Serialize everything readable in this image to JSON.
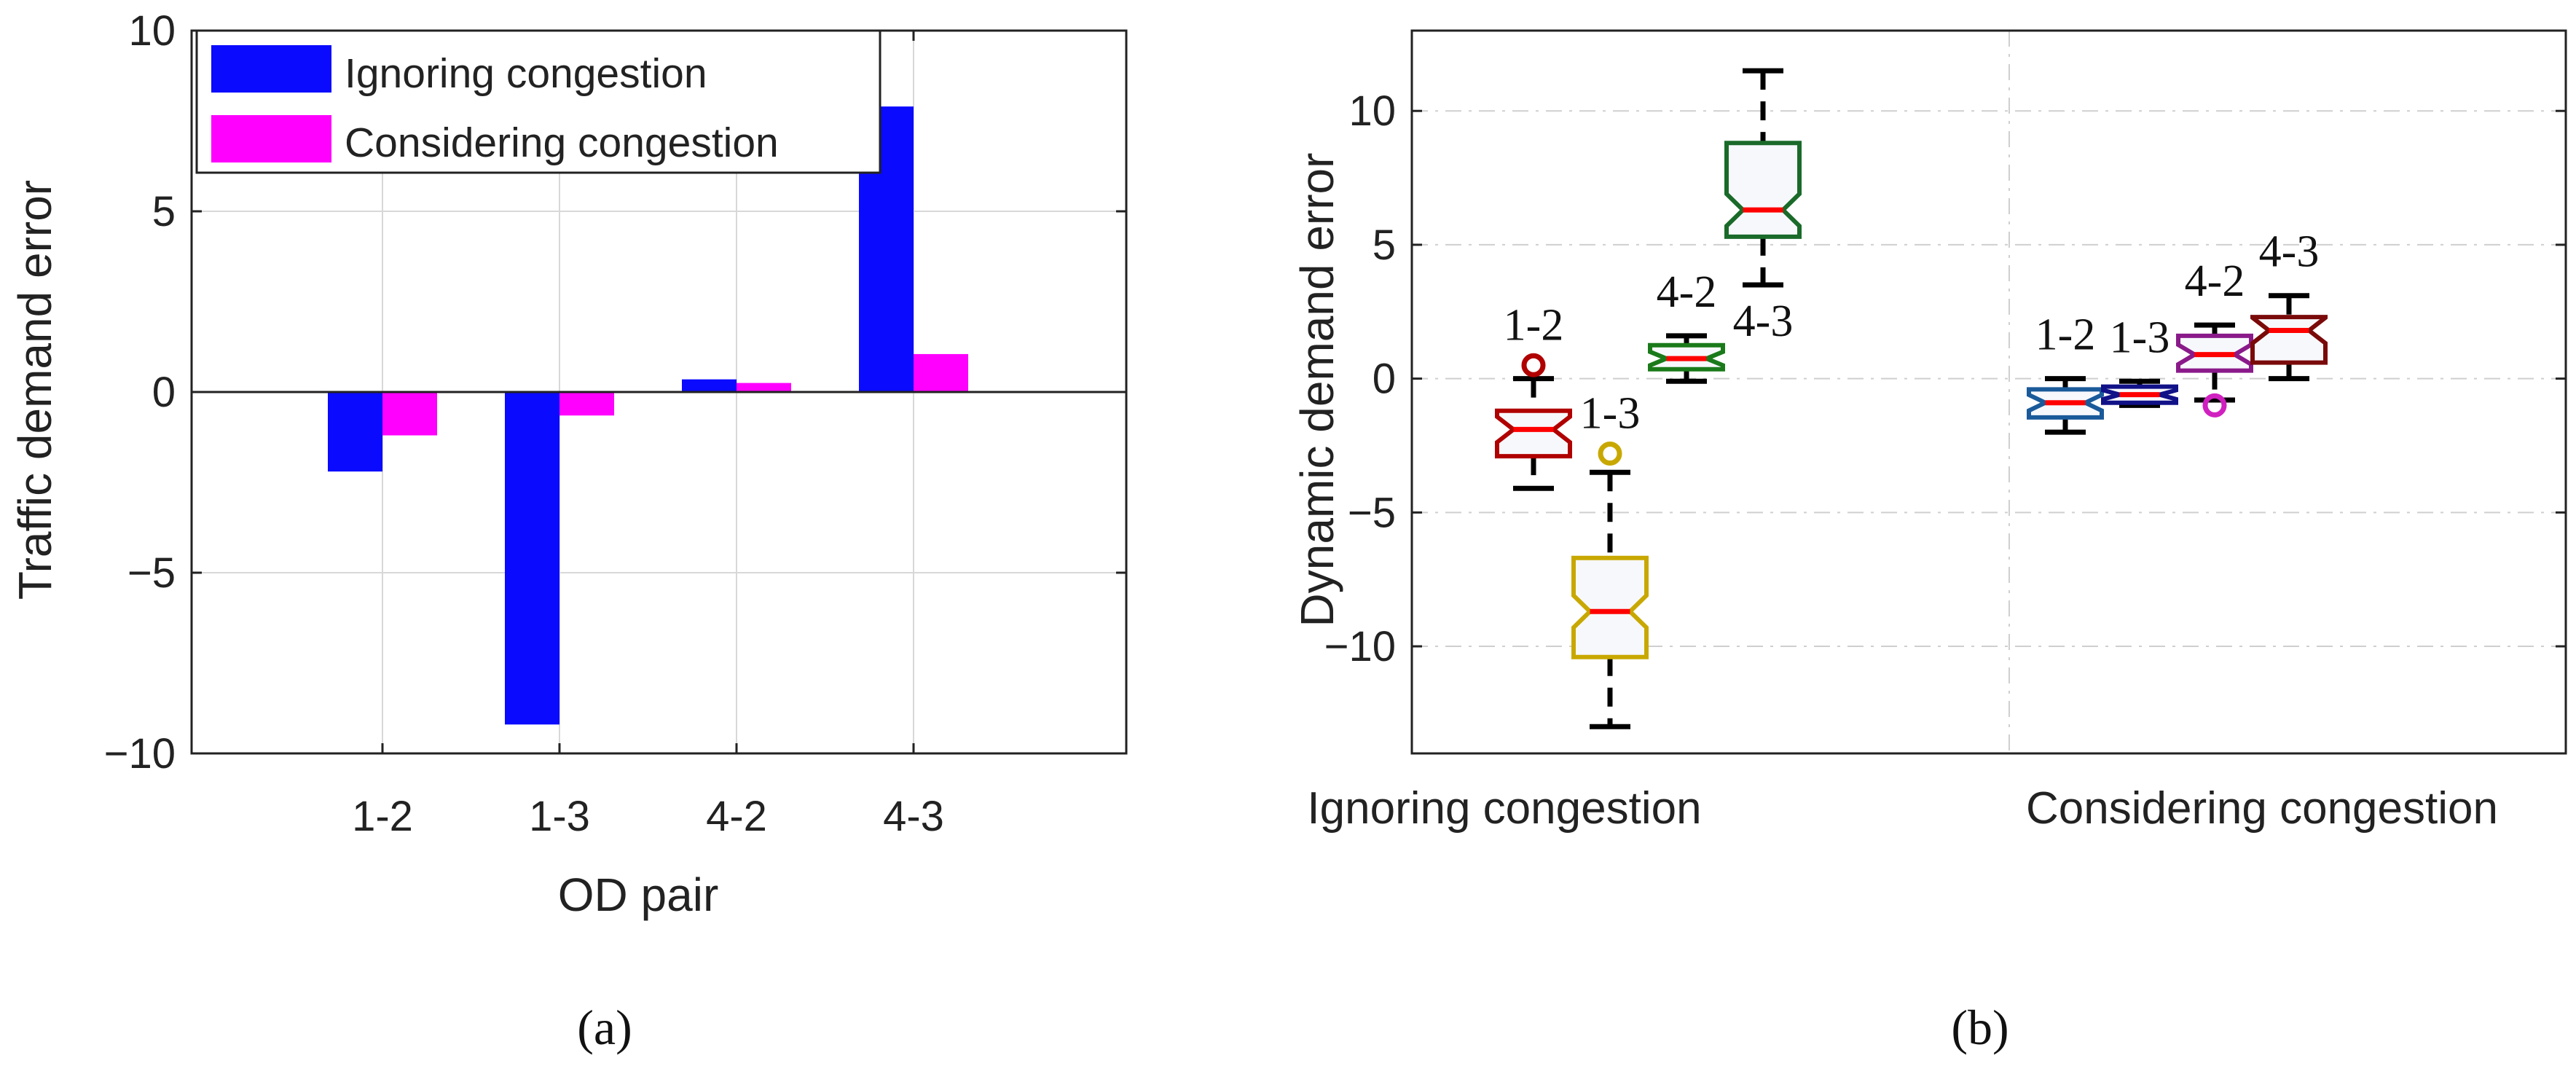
{
  "chart_data": [
    {
      "type": "bar",
      "panel_label": "(a)",
      "xlabel": "OD pair",
      "ylabel": "Traffic demand error",
      "categories": [
        "1-2",
        "1-3",
        "4-2",
        "4-3"
      ],
      "ylim": [
        -10,
        10
      ],
      "yticks": [
        10,
        5,
        0,
        -5,
        -10
      ],
      "ytick_labels": [
        "10",
        "5",
        "0",
        "−5",
        "−10"
      ],
      "grid": true,
      "legend_position": "top-left",
      "series": [
        {
          "name": "Ignoring congestion",
          "color": "#0a0aff",
          "values": [
            -2.2,
            -9.2,
            0.35,
            7.9
          ]
        },
        {
          "name": "Considering congestion",
          "color": "#ff00ff",
          "values": [
            -1.2,
            -0.65,
            0.25,
            1.05
          ]
        }
      ]
    },
    {
      "type": "box",
      "panel_label": "(b)",
      "ylabel": "Dynamic demand error",
      "group_labels": [
        "Ignoring congestion",
        "Considering congestion"
      ],
      "ylim": [
        -14,
        13
      ],
      "yticks": [
        10,
        5,
        0,
        -5,
        -10
      ],
      "ytick_labels": [
        "10",
        "5",
        "0",
        "−5",
        "−10"
      ],
      "grid": true,
      "boxes": [
        {
          "label": "1-2",
          "group": "Ignoring congestion",
          "color": "#b00000",
          "whisker_low": -4.1,
          "q1": -2.9,
          "median": -1.9,
          "q3": -1.2,
          "whisker_high": 0,
          "outliers": [
            0.5
          ]
        },
        {
          "label": "1-3",
          "group": "Ignoring congestion",
          "color": "#c8a800",
          "whisker_low": -13,
          "q1": -10.4,
          "median": -8.7,
          "q3": -6.7,
          "whisker_high": -3.5,
          "outliers": [
            -2.8
          ]
        },
        {
          "label": "4-2",
          "group": "Ignoring congestion",
          "color": "#1a7a1a",
          "whisker_low": -0.1,
          "q1": 0.35,
          "median": 0.75,
          "q3": 1.25,
          "whisker_high": 1.6,
          "outliers": []
        },
        {
          "label": "4-3",
          "group": "Ignoring congestion",
          "color": "#1a6a2a",
          "whisker_low": 3.5,
          "q1": 5.3,
          "median": 6.3,
          "q3": 8.8,
          "whisker_high": 11.5,
          "outliers": []
        },
        {
          "label": "1-2",
          "group": "Considering congestion",
          "color": "#1a5a9a",
          "whisker_low": -2,
          "q1": -1.45,
          "median": -0.9,
          "q3": -0.4,
          "whisker_high": 0,
          "outliers": []
        },
        {
          "label": "1-3",
          "group": "Considering congestion",
          "color": "#111188",
          "whisker_low": -1,
          "q1": -0.9,
          "median": -0.6,
          "q3": -0.3,
          "whisker_high": -0.1,
          "outliers": []
        },
        {
          "label": "4-2",
          "group": "Considering congestion",
          "color": "#8a1a8a",
          "whisker_low": -0.8,
          "q1": 0.3,
          "median": 0.9,
          "q3": 1.6,
          "whisker_high": 2,
          "outliers": [
            -1
          ]
        },
        {
          "label": "4-3",
          "group": "Considering congestion",
          "color": "#7a0a0a",
          "whisker_low": 0,
          "q1": 0.6,
          "median": 1.8,
          "q3": 2.3,
          "whisker_high": 3.1,
          "outliers": []
        }
      ]
    }
  ]
}
